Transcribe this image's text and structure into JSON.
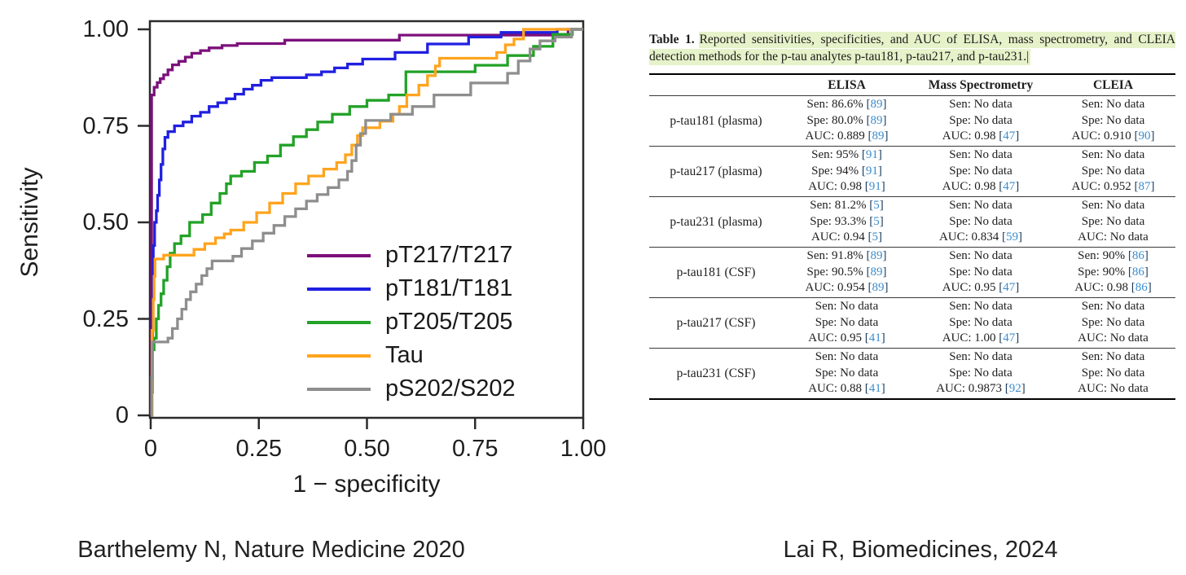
{
  "footer": {
    "left_caption": "Barthelemy N, Nature Medicine 2020",
    "right_caption": "Lai R, Biomedicines, 2024"
  },
  "chart_data": [
    {
      "type": "line",
      "subtype": "roc-step-curves",
      "title": "",
      "xlabel": "1 − specificity",
      "ylabel": "Sensitivity",
      "xlim": [
        0,
        1
      ],
      "ylim": [
        0,
        1
      ],
      "grid": false,
      "legend_position": "inside-lower-right",
      "x_tick_values": [
        0,
        0.25,
        0.5,
        0.75,
        1
      ],
      "x_ticks": [
        "0",
        "0.25",
        "0.50",
        "0.75",
        "1.00"
      ],
      "y_tick_values": [
        0,
        0.25,
        0.5,
        0.75,
        1
      ],
      "y_ticks": [
        "0",
        "0.25",
        "0.50",
        "0.75",
        "1.00"
      ],
      "frame_color": "#2b2b2b",
      "series": [
        {
          "name": "pT217/T217",
          "color": "#7c107c",
          "points": [
            [
              0,
              0
            ],
            [
              0.002,
              0.83
            ],
            [
              0.008,
              0.85
            ],
            [
              0.015,
              0.862
            ],
            [
              0.022,
              0.872
            ],
            [
              0.03,
              0.882
            ],
            [
              0.04,
              0.895
            ],
            [
              0.05,
              0.908
            ],
            [
              0.065,
              0.917
            ],
            [
              0.08,
              0.928
            ],
            [
              0.095,
              0.938
            ],
            [
              0.115,
              0.945
            ],
            [
              0.135,
              0.952
            ],
            [
              0.165,
              0.958
            ],
            [
              0.2,
              0.963
            ],
            [
              0.31,
              0.972
            ],
            [
              0.575,
              0.985
            ],
            [
              0.965,
              1
            ],
            [
              1,
              1
            ]
          ]
        },
        {
          "name": "pT181/T181",
          "color": "#2020e0",
          "points": [
            [
              0,
              0
            ],
            [
              0.002,
              0.06
            ],
            [
              0.004,
              0.3
            ],
            [
              0.006,
              0.44
            ],
            [
              0.009,
              0.5
            ],
            [
              0.013,
              0.53
            ],
            [
              0.016,
              0.57
            ],
            [
              0.02,
              0.61
            ],
            [
              0.024,
              0.65
            ],
            [
              0.028,
              0.69
            ],
            [
              0.033,
              0.72
            ],
            [
              0.04,
              0.735
            ],
            [
              0.055,
              0.75
            ],
            [
              0.075,
              0.76
            ],
            [
              0.095,
              0.775
            ],
            [
              0.115,
              0.785
            ],
            [
              0.135,
              0.8
            ],
            [
              0.155,
              0.81
            ],
            [
              0.175,
              0.82
            ],
            [
              0.195,
              0.832
            ],
            [
              0.215,
              0.845
            ],
            [
              0.235,
              0.855
            ],
            [
              0.255,
              0.868
            ],
            [
              0.28,
              0.875
            ],
            [
              0.36,
              0.882
            ],
            [
              0.395,
              0.89
            ],
            [
              0.425,
              0.9
            ],
            [
              0.455,
              0.91
            ],
            [
              0.49,
              0.923
            ],
            [
              0.565,
              0.94
            ],
            [
              0.64,
              0.962
            ],
            [
              0.735,
              0.98
            ],
            [
              0.81,
              0.992
            ],
            [
              0.94,
              1
            ],
            [
              1,
              1
            ]
          ]
        },
        {
          "name": "pT205/T205",
          "color": "#22a227",
          "points": [
            [
              0,
              0
            ],
            [
              0.003,
              0.17
            ],
            [
              0.008,
              0.2
            ],
            [
              0.013,
              0.25
            ],
            [
              0.018,
              0.285
            ],
            [
              0.024,
              0.315
            ],
            [
              0.03,
              0.35
            ],
            [
              0.038,
              0.385
            ],
            [
              0.045,
              0.42
            ],
            [
              0.055,
              0.445
            ],
            [
              0.07,
              0.465
            ],
            [
              0.09,
              0.5
            ],
            [
              0.12,
              0.52
            ],
            [
              0.14,
              0.55
            ],
            [
              0.16,
              0.575
            ],
            [
              0.175,
              0.6
            ],
            [
              0.185,
              0.62
            ],
            [
              0.21,
              0.632
            ],
            [
              0.24,
              0.655
            ],
            [
              0.27,
              0.672
            ],
            [
              0.3,
              0.7
            ],
            [
              0.33,
              0.722
            ],
            [
              0.36,
              0.74
            ],
            [
              0.386,
              0.76
            ],
            [
              0.42,
              0.78
            ],
            [
              0.46,
              0.8
            ],
            [
              0.5,
              0.816
            ],
            [
              0.55,
              0.83
            ],
            [
              0.59,
              0.89
            ],
            [
              0.75,
              0.907
            ],
            [
              0.825,
              0.932
            ],
            [
              0.885,
              0.956
            ],
            [
              0.93,
              0.987
            ],
            [
              0.975,
              1
            ],
            [
              1,
              1
            ]
          ]
        },
        {
          "name": "Tau",
          "color": "#ffa41d",
          "points": [
            [
              0,
              0
            ],
            [
              0.003,
              0.22
            ],
            [
              0.006,
              0.3
            ],
            [
              0.008,
              0.36
            ],
            [
              0.01,
              0.405
            ],
            [
              0.03,
              0.415
            ],
            [
              0.1,
              0.43
            ],
            [
              0.125,
              0.445
            ],
            [
              0.15,
              0.46
            ],
            [
              0.17,
              0.47
            ],
            [
              0.185,
              0.48
            ],
            [
              0.215,
              0.5
            ],
            [
              0.245,
              0.525
            ],
            [
              0.275,
              0.55
            ],
            [
              0.305,
              0.575
            ],
            [
              0.335,
              0.6
            ],
            [
              0.365,
              0.62
            ],
            [
              0.4,
              0.638
            ],
            [
              0.43,
              0.655
            ],
            [
              0.45,
              0.675
            ],
            [
              0.465,
              0.7
            ],
            [
              0.478,
              0.725
            ],
            [
              0.49,
              0.745
            ],
            [
              0.53,
              0.762
            ],
            [
              0.56,
              0.78
            ],
            [
              0.575,
              0.8
            ],
            [
              0.592,
              0.83
            ],
            [
              0.62,
              0.855
            ],
            [
              0.64,
              0.88
            ],
            [
              0.658,
              0.905
            ],
            [
              0.668,
              0.925
            ],
            [
              0.8,
              0.94
            ],
            [
              0.82,
              0.96
            ],
            [
              0.84,
              0.975
            ],
            [
              0.862,
              1
            ],
            [
              1,
              1
            ]
          ]
        },
        {
          "name": "pS202/S202",
          "color": "#8e8e8e",
          "points": [
            [
              0,
              0
            ],
            [
              0.002,
              0.1
            ],
            [
              0.004,
              0.19
            ],
            [
              0.04,
              0.2
            ],
            [
              0.05,
              0.225
            ],
            [
              0.062,
              0.25
            ],
            [
              0.072,
              0.275
            ],
            [
              0.082,
              0.3
            ],
            [
              0.092,
              0.32
            ],
            [
              0.105,
              0.34
            ],
            [
              0.118,
              0.362
            ],
            [
              0.13,
              0.38
            ],
            [
              0.142,
              0.4
            ],
            [
              0.19,
              0.412
            ],
            [
              0.21,
              0.432
            ],
            [
              0.235,
              0.452
            ],
            [
              0.26,
              0.472
            ],
            [
              0.285,
              0.492
            ],
            [
              0.31,
              0.515
            ],
            [
              0.335,
              0.535
            ],
            [
              0.36,
              0.555
            ],
            [
              0.385,
              0.572
            ],
            [
              0.41,
              0.59
            ],
            [
              0.435,
              0.61
            ],
            [
              0.455,
              0.632
            ],
            [
              0.465,
              0.66
            ],
            [
              0.475,
              0.7
            ],
            [
              0.485,
              0.73
            ],
            [
              0.497,
              0.764
            ],
            [
              0.555,
              0.78
            ],
            [
              0.605,
              0.8
            ],
            [
              0.655,
              0.83
            ],
            [
              0.74,
              0.861
            ],
            [
              0.825,
              0.886
            ],
            [
              0.85,
              0.918
            ],
            [
              0.877,
              0.949
            ],
            [
              0.9,
              0.97
            ],
            [
              0.935,
              0.98
            ],
            [
              0.973,
              1
            ],
            [
              1,
              1
            ]
          ]
        }
      ]
    },
    {
      "type": "table",
      "caption_label": "Table 1.",
      "caption": "Reported sensitivities, specificities, and AUC of ELISA, mass spectrometry, and CLEIA detection methods for the p-tau analytes p-tau181, p-tau217, and p-tau231.",
      "caption_caret": "|",
      "highlight_color": "#e6f2c9",
      "ref_color": "#3b8ccd",
      "bracket_color": "#1a3a5c",
      "columns": [
        "",
        "ELISA",
        "Mass Spectrometry",
        "CLEIA"
      ],
      "rows": [
        {
          "label": "p-tau181 (plasma)",
          "cells": [
            [
              {
                "t": "Sen: 86.6%",
                "ref": "89"
              },
              {
                "t": "Spe: 80.0%",
                "ref": "89"
              },
              {
                "t": "AUC: 0.889",
                "ref": "89"
              }
            ],
            [
              {
                "t": "Sen: No data"
              },
              {
                "t": "Spe: No data"
              },
              {
                "t": "AUC: 0.98",
                "ref": "47"
              }
            ],
            [
              {
                "t": "Sen: No data"
              },
              {
                "t": "Spe: No data"
              },
              {
                "t": "AUC: 0.910",
                "ref": "90"
              }
            ]
          ]
        },
        {
          "label": "p-tau217 (plasma)",
          "cells": [
            [
              {
                "t": "Sen: 95%",
                "ref": "91"
              },
              {
                "t": "Spe: 94%",
                "ref": "91"
              },
              {
                "t": "AUC: 0.98",
                "ref": "91"
              }
            ],
            [
              {
                "t": "Sen: No data"
              },
              {
                "t": "Spe: No data"
              },
              {
                "t": "AUC: 0.98",
                "ref": "47"
              }
            ],
            [
              {
                "t": "Sen: No data"
              },
              {
                "t": "Spe: No data"
              },
              {
                "t": "AUC: 0.952",
                "ref": "87"
              }
            ]
          ]
        },
        {
          "label": "p-tau231 (plasma)",
          "cells": [
            [
              {
                "t": "Sen: 81.2%",
                "ref": "5"
              },
              {
                "t": "Spe: 93.3%",
                "ref": "5"
              },
              {
                "t": "AUC: 0.94",
                "ref": "5"
              }
            ],
            [
              {
                "t": "Sen: No data"
              },
              {
                "t": "Spe: No data"
              },
              {
                "t": "AUC: 0.834",
                "ref": "59"
              }
            ],
            [
              {
                "t": "Sen: No data"
              },
              {
                "t": "Spe: No data"
              },
              {
                "t": "AUC: No data"
              }
            ]
          ]
        },
        {
          "label": "p-tau181 (CSF)",
          "cells": [
            [
              {
                "t": "Sen: 91.8%",
                "ref": "89"
              },
              {
                "t": "Spe: 90.5%",
                "ref": "89"
              },
              {
                "t": "AUC: 0.954",
                "ref": "89"
              }
            ],
            [
              {
                "t": "Sen: No data"
              },
              {
                "t": "Spe: No data"
              },
              {
                "t": "AUC: 0.95",
                "ref": "47"
              }
            ],
            [
              {
                "t": "Sen: 90%",
                "ref": "86"
              },
              {
                "t": "Spe: 90%",
                "ref": "86"
              },
              {
                "t": "AUC: 0.98",
                "ref": "86"
              }
            ]
          ]
        },
        {
          "label": "p-tau217 (CSF)",
          "cells": [
            [
              {
                "t": "Sen: No data"
              },
              {
                "t": "Spe: No data"
              },
              {
                "t": "AUC: 0.95",
                "ref": "41"
              }
            ],
            [
              {
                "t": "Sen: No data"
              },
              {
                "t": "Spe: No data"
              },
              {
                "t": "AUC: 1.00",
                "ref": "47"
              }
            ],
            [
              {
                "t": "Sen: No data"
              },
              {
                "t": "Spe: No data"
              },
              {
                "t": "AUC: No data"
              }
            ]
          ]
        },
        {
          "label": "p-tau231 (CSF)",
          "cells": [
            [
              {
                "t": "Sen: No data"
              },
              {
                "t": "Spe: No data"
              },
              {
                "t": "AUC: 0.88",
                "ref": "41"
              }
            ],
            [
              {
                "t": "Sen: No data"
              },
              {
                "t": "Spe: No data"
              },
              {
                "t": "AUC: 0.9873",
                "ref": "92"
              }
            ],
            [
              {
                "t": "Sen: No data"
              },
              {
                "t": "Spe: No data"
              },
              {
                "t": "AUC: No data"
              }
            ]
          ]
        }
      ]
    }
  ]
}
